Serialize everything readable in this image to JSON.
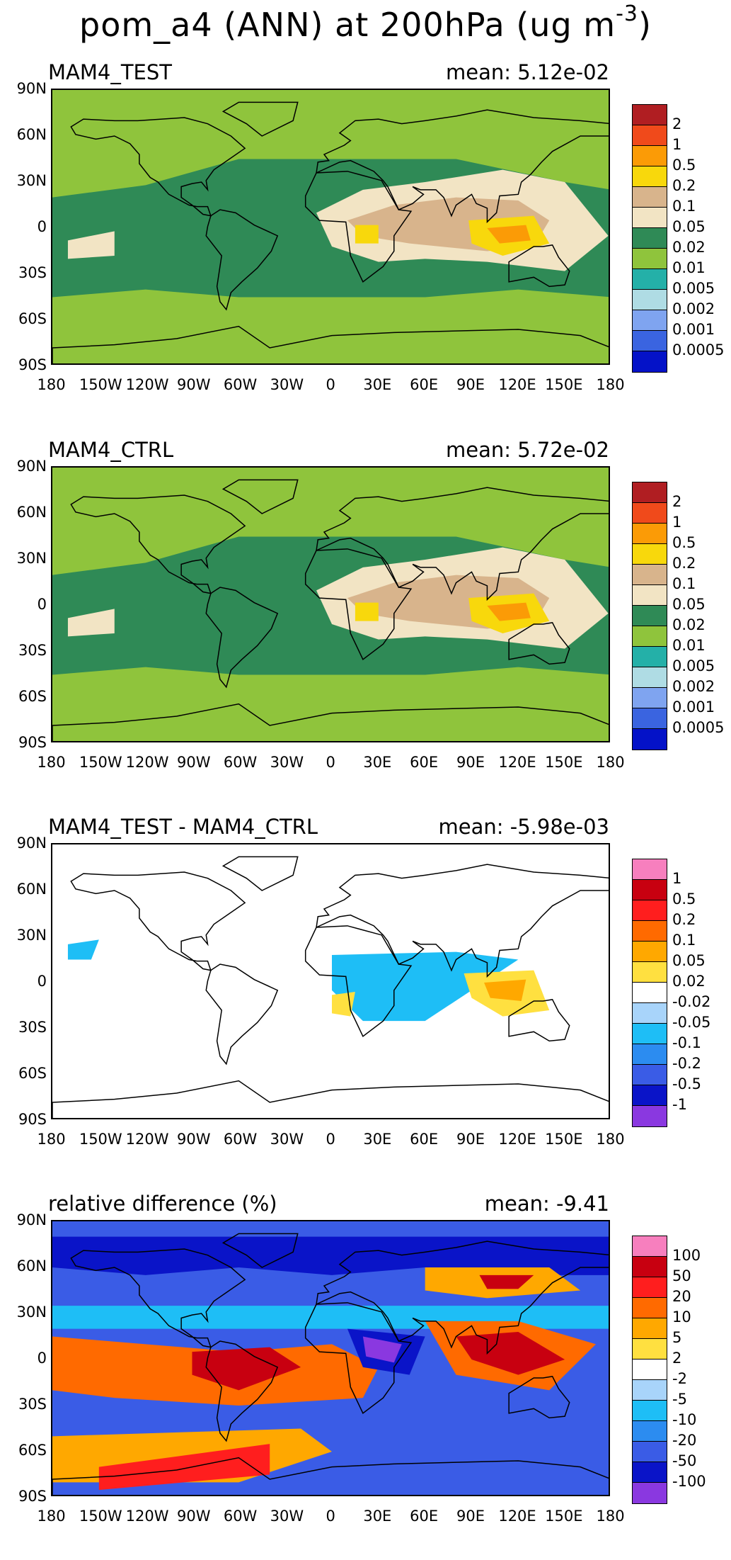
{
  "figure": {
    "title_main": "pom_a4 (ANN) at 200hPa (ug m",
    "title_exponent": "-3",
    "title_close": ")"
  },
  "axes": {
    "lat_labels": [
      "90N",
      "60N",
      "30N",
      "0",
      "30S",
      "60S",
      "90S"
    ],
    "lon_labels": [
      "180",
      "150W",
      "120W",
      "90W",
      "60W",
      "30W",
      "0",
      "30E",
      "60E",
      "90E",
      "120E",
      "150E",
      "180"
    ]
  },
  "panels": [
    {
      "title": "MAM4_TEST",
      "mean": "mean: 5.12e-02",
      "background": "#8fc43c",
      "colorbar": {
        "colors": [
          "#b01e22",
          "#f04a1b",
          "#fb9b06",
          "#f8d80c",
          "#d8b48c",
          "#f2e4c4",
          "#2f8a56",
          "#8fc43c",
          "#24b0a8",
          "#afdce4",
          "#7fa4f0",
          "#3a64e0",
          "#0412c8"
        ],
        "labels": [
          "2",
          "1",
          "0.5",
          "0.2",
          "0.1",
          "0.05",
          "0.02",
          "0.01",
          "0.005",
          "0.002",
          "0.001",
          "0.0005"
        ]
      }
    },
    {
      "title": "MAM4_CTRL",
      "mean": "mean: 5.72e-02",
      "background": "#8fc43c",
      "colorbar": {
        "colors": [
          "#b01e22",
          "#f04a1b",
          "#fb9b06",
          "#f8d80c",
          "#d8b48c",
          "#f2e4c4",
          "#2f8a56",
          "#8fc43c",
          "#24b0a8",
          "#afdce4",
          "#7fa4f0",
          "#3a64e0",
          "#0412c8"
        ],
        "labels": [
          "2",
          "1",
          "0.5",
          "0.2",
          "0.1",
          "0.05",
          "0.02",
          "0.01",
          "0.005",
          "0.002",
          "0.001",
          "0.0005"
        ]
      }
    },
    {
      "title": "MAM4_TEST - MAM4_CTRL",
      "mean": "mean: -5.98e-03",
      "background": "#ffffff",
      "colorbar": {
        "colors": [
          "#f77fbe",
          "#c80010",
          "#ff1e1e",
          "#ff6a00",
          "#ffa800",
          "#ffe040",
          "#ffffff",
          "#a8d4fa",
          "#1ebef6",
          "#2c8cf0",
          "#3a5ce6",
          "#0a14c8",
          "#8a38e0"
        ],
        "labels": [
          "1",
          "0.5",
          "0.2",
          "0.1",
          "0.05",
          "0.02",
          "-0.02",
          "-0.05",
          "-0.1",
          "-0.2",
          "-0.5",
          "-1"
        ]
      }
    },
    {
      "title": "relative difference (%)",
      "mean": "mean: -9.41",
      "background": "#3c78e4",
      "colorbar": {
        "colors": [
          "#f77fbe",
          "#c80010",
          "#ff1e1e",
          "#ff6a00",
          "#ffa800",
          "#ffe040",
          "#ffffff",
          "#a8d4fa",
          "#1ebef6",
          "#2c8cf0",
          "#3a5ce6",
          "#0a14c8",
          "#8a38e0"
        ],
        "labels": [
          "100",
          "50",
          "20",
          "10",
          "5",
          "2",
          "-2",
          "-5",
          "-10",
          "-20",
          "-50",
          "-100"
        ]
      }
    }
  ]
}
